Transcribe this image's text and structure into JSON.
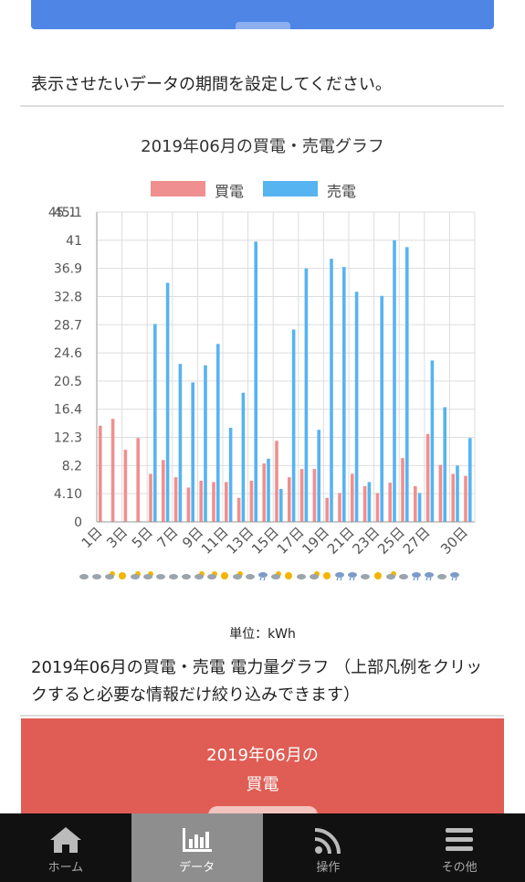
{
  "instruction_text": "表示させたいデータの期間を設定してください。",
  "chart_title": "2019年06月の買電・売電グラフ",
  "unit_label": "単位：kWh",
  "description": "2019年06月の買電・売電 電力量グラフ （上部凡例をクリックすると必要な情報だけ絞り込みできます）",
  "card": {
    "line1": "2019年06月の",
    "line2": "買電"
  },
  "tabs": [
    {
      "label": "ホーム",
      "icon": "home-icon"
    },
    {
      "label": "データ",
      "icon": "bar-chart-icon"
    },
    {
      "label": "操作",
      "icon": "signal-icon"
    },
    {
      "label": "その他",
      "icon": "menu-icon"
    }
  ],
  "colors": {
    "buy": "#f08f8f",
    "sell": "#56b4f0",
    "accent_blue": "#4f86e6",
    "card_red": "#df5d54"
  },
  "chart_data": {
    "type": "bar",
    "title": "2019年06月の買電・売電グラフ",
    "categories": [
      "1日",
      "2日",
      "3日",
      "4日",
      "5日",
      "6日",
      "7日",
      "8日",
      "9日",
      "10日",
      "11日",
      "12日",
      "13日",
      "14日",
      "15日",
      "16日",
      "17日",
      "18日",
      "19日",
      "20日",
      "21日",
      "22日",
      "23日",
      "24日",
      "25日",
      "26日",
      "27日",
      "28日",
      "29日",
      "30日"
    ],
    "x_tick_labels": [
      "1日",
      "3日",
      "5日",
      "7日",
      "9日",
      "11日",
      "13日",
      "15日",
      "17日",
      "19日",
      "21日",
      "23日",
      "25日",
      "27日",
      "30日"
    ],
    "y_tick_labels": [
      "0",
      "4.10",
      "8.2",
      "12.3",
      "16.4",
      "20.5",
      "24.6",
      "28.7",
      "32.8",
      "36.9",
      "41",
      "45.1"
    ],
    "y_top_overlap_label": "45.1",
    "ylim": [
      0,
      45.1
    ],
    "legend_position": "top",
    "grid": true,
    "series": [
      {
        "name": "買電",
        "color": "#f08f8f",
        "values": [
          14,
          15,
          10.5,
          12.2,
          7,
          9,
          6.5,
          5,
          6,
          5.8,
          5.8,
          3.5,
          6,
          8.5,
          11.8,
          6.5,
          7.7,
          7.7,
          3.5,
          4.2,
          7,
          5.2,
          4.2,
          5.7,
          9.3,
          5.2,
          12.8,
          8.3,
          7,
          6.7
        ]
      },
      {
        "name": "売電",
        "color": "#56b4f0",
        "values": [
          0,
          0,
          0,
          0,
          28.8,
          34.8,
          23,
          20.3,
          22.8,
          25.9,
          13.7,
          18.8,
          40.8,
          9.2,
          4.8,
          28,
          36.9,
          13.4,
          38.3,
          37.1,
          33.5,
          5.8,
          32.9,
          41,
          40,
          4.2,
          23.5,
          16.7,
          8.2,
          12.2
        ]
      }
    ],
    "weather_icons": [
      "cloud",
      "cloud",
      "sun-cloud",
      "sun",
      "sun-cloud",
      "sun-cloud",
      "cloud",
      "cloud",
      "cloud",
      "sun-cloud",
      "sun-cloud",
      "sun",
      "sun-cloud",
      "cloud",
      "rain",
      "sun-cloud",
      "sun",
      "cloud",
      "sun-cloud",
      "sun",
      "rain",
      "rain",
      "cloud",
      "sun",
      "sun-cloud",
      "cloud",
      "rain",
      "rain",
      "cloud",
      "rain"
    ]
  }
}
